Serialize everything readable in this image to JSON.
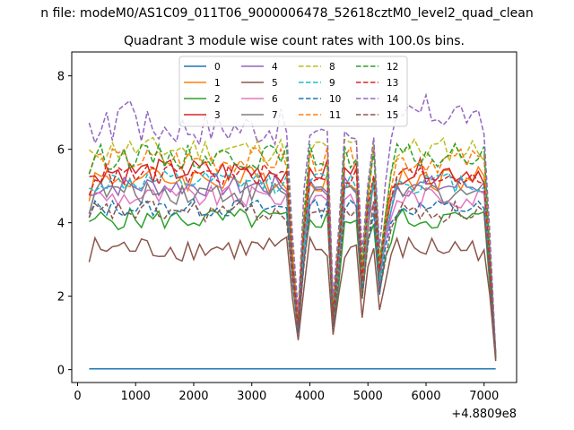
{
  "chart_data": {
    "type": "line",
    "suptitle": "n file: modeM0/AS1C09_011T06_9000006478_52618cztM0_level2_quad_clean",
    "title": "Quadrant 3 module wise count rates with 100.0s bins.",
    "offset_label": "+4.8809e8",
    "xlim": [
      -100,
      7560
    ],
    "ylim": [
      -0.35,
      8.65
    ],
    "xticks": [
      0,
      1000,
      2000,
      3000,
      4000,
      5000,
      6000,
      7000
    ],
    "yticks": [
      0,
      2,
      4,
      6,
      8
    ],
    "legend_position": "upper-center",
    "x": [
      200,
      300,
      400,
      500,
      600,
      700,
      800,
      900,
      1000,
      1100,
      1200,
      1300,
      1400,
      1500,
      1600,
      1700,
      1800,
      1900,
      2000,
      2100,
      2200,
      2300,
      2400,
      2500,
      2600,
      2700,
      2800,
      2900,
      3000,
      3100,
      3200,
      3300,
      3400,
      3500,
      3600,
      3700,
      3800,
      3900,
      4000,
      4100,
      4200,
      4300,
      4400,
      4500,
      4600,
      4700,
      4800,
      4900,
      5000,
      5100,
      5200,
      5300,
      5400,
      5500,
      5600,
      5700,
      5800,
      5900,
      6000,
      6100,
      6200,
      6300,
      6400,
      6500,
      6600,
      6700,
      6800,
      6900,
      7000,
      7100,
      7200
    ],
    "dips": [
      [
        3750,
        0.2
      ],
      [
        3820,
        0.08
      ],
      [
        4430,
        0.04
      ],
      [
        4920,
        0.35
      ],
      [
        5230,
        0.3
      ],
      [
        5370,
        0.82
      ],
      [
        7150,
        0.22
      ],
      [
        7200,
        0.07
      ]
    ],
    "series": [
      {
        "name": "0",
        "color": "#1f77b4",
        "dash": false,
        "base": 0.02,
        "amp": 0.0
      },
      {
        "name": "1",
        "color": "#ff7f0e",
        "dash": false,
        "base": 5.2,
        "amp": 0.35
      },
      {
        "name": "2",
        "color": "#2ca02c",
        "dash": false,
        "base": 4.1,
        "amp": 0.3
      },
      {
        "name": "3",
        "color": "#d62728",
        "dash": false,
        "base": 5.4,
        "amp": 0.35
      },
      {
        "name": "4",
        "color": "#9467bd",
        "dash": false,
        "base": 5.0,
        "amp": 0.3
      },
      {
        "name": "5",
        "color": "#8c564b",
        "dash": false,
        "base": 3.3,
        "amp": 0.35
      },
      {
        "name": "6",
        "color": "#e377c2",
        "dash": false,
        "base": 4.7,
        "amp": 0.3
      },
      {
        "name": "7",
        "color": "#7f7f7f",
        "dash": false,
        "base": 4.85,
        "amp": 0.35
      },
      {
        "name": "8",
        "color": "#bcbd22",
        "dash": true,
        "base": 6.0,
        "amp": 0.35
      },
      {
        "name": "9",
        "color": "#17becf",
        "dash": true,
        "base": 5.1,
        "amp": 0.3
      },
      {
        "name": "10",
        "color": "#1f77b4",
        "dash": true,
        "base": 4.4,
        "amp": 0.25
      },
      {
        "name": "11",
        "color": "#ff7f0e",
        "dash": true,
        "base": 5.7,
        "amp": 0.35
      },
      {
        "name": "12",
        "color": "#2ca02c",
        "dash": true,
        "base": 5.8,
        "amp": 0.35
      },
      {
        "name": "13",
        "color": "#d62728",
        "dash": true,
        "base": 5.3,
        "amp": 0.3
      },
      {
        "name": "14",
        "color": "#9467bd",
        "dash": true,
        "base": 6.6,
        "amp": 0.5
      },
      {
        "name": "15",
        "color": "#8c564b",
        "dash": true,
        "base": 4.3,
        "amp": 0.3
      }
    ]
  }
}
